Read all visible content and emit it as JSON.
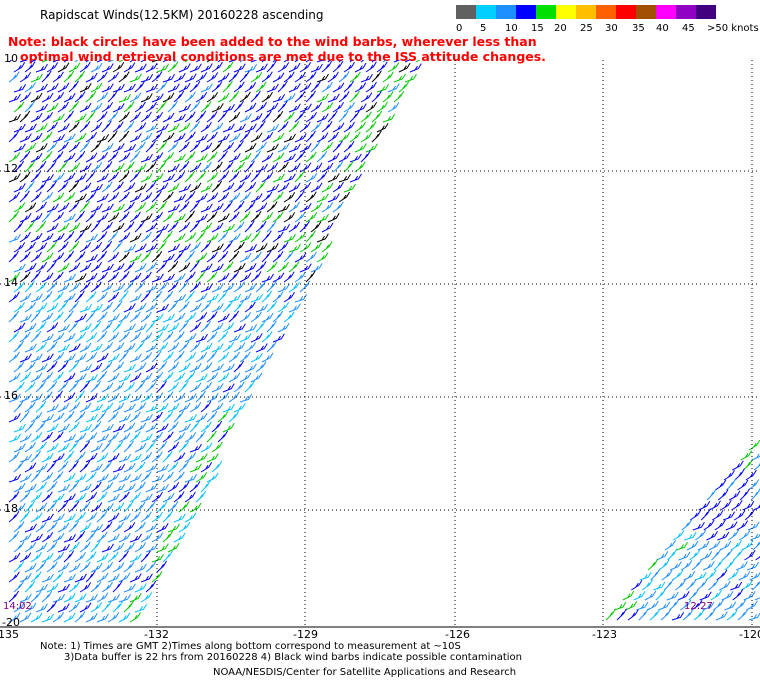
{
  "header": {
    "title": "Rapidscat Winds(12.5KM) 20160228 ascending",
    "note_line1": "Note: black circles have been added to the wind barbs, wherever less than",
    "note_line2": "optimal wind retrieval conditions are met due to the ISS attitude changes."
  },
  "color_scale": {
    "colors": [
      "#606060",
      "#00d0ff",
      "#1e8fff",
      "#0000ff",
      "#00e000",
      "#ffff00",
      "#ffbf00",
      "#ff6000",
      "#ff0000",
      "#a05000",
      "#ff00ff",
      "#9000c0",
      "#400080"
    ],
    "ticks": [
      "0",
      "5",
      "10",
      "15",
      "20",
      "25",
      "30",
      "35",
      "40",
      "45",
      ">50 knots"
    ]
  },
  "map": {
    "lon_labels": [
      "-135",
      "-132",
      "-129",
      "-126",
      "-123",
      "-120"
    ],
    "lat_labels": [
      "10",
      "12",
      "14",
      "16",
      "18",
      "-20"
    ],
    "time_labels": [
      "14:02",
      "12:27"
    ]
  },
  "footer": {
    "line1": "Note: 1) Times are GMT 2)Times along bottom correspond to measurement at ~10S",
    "line2": "3)Data buffer is 22 hrs from 20160228 4) Black wind barbs indicate possible contamination",
    "line3": "NOAA/NESDIS/Center for Satellite Applications and Research"
  }
}
